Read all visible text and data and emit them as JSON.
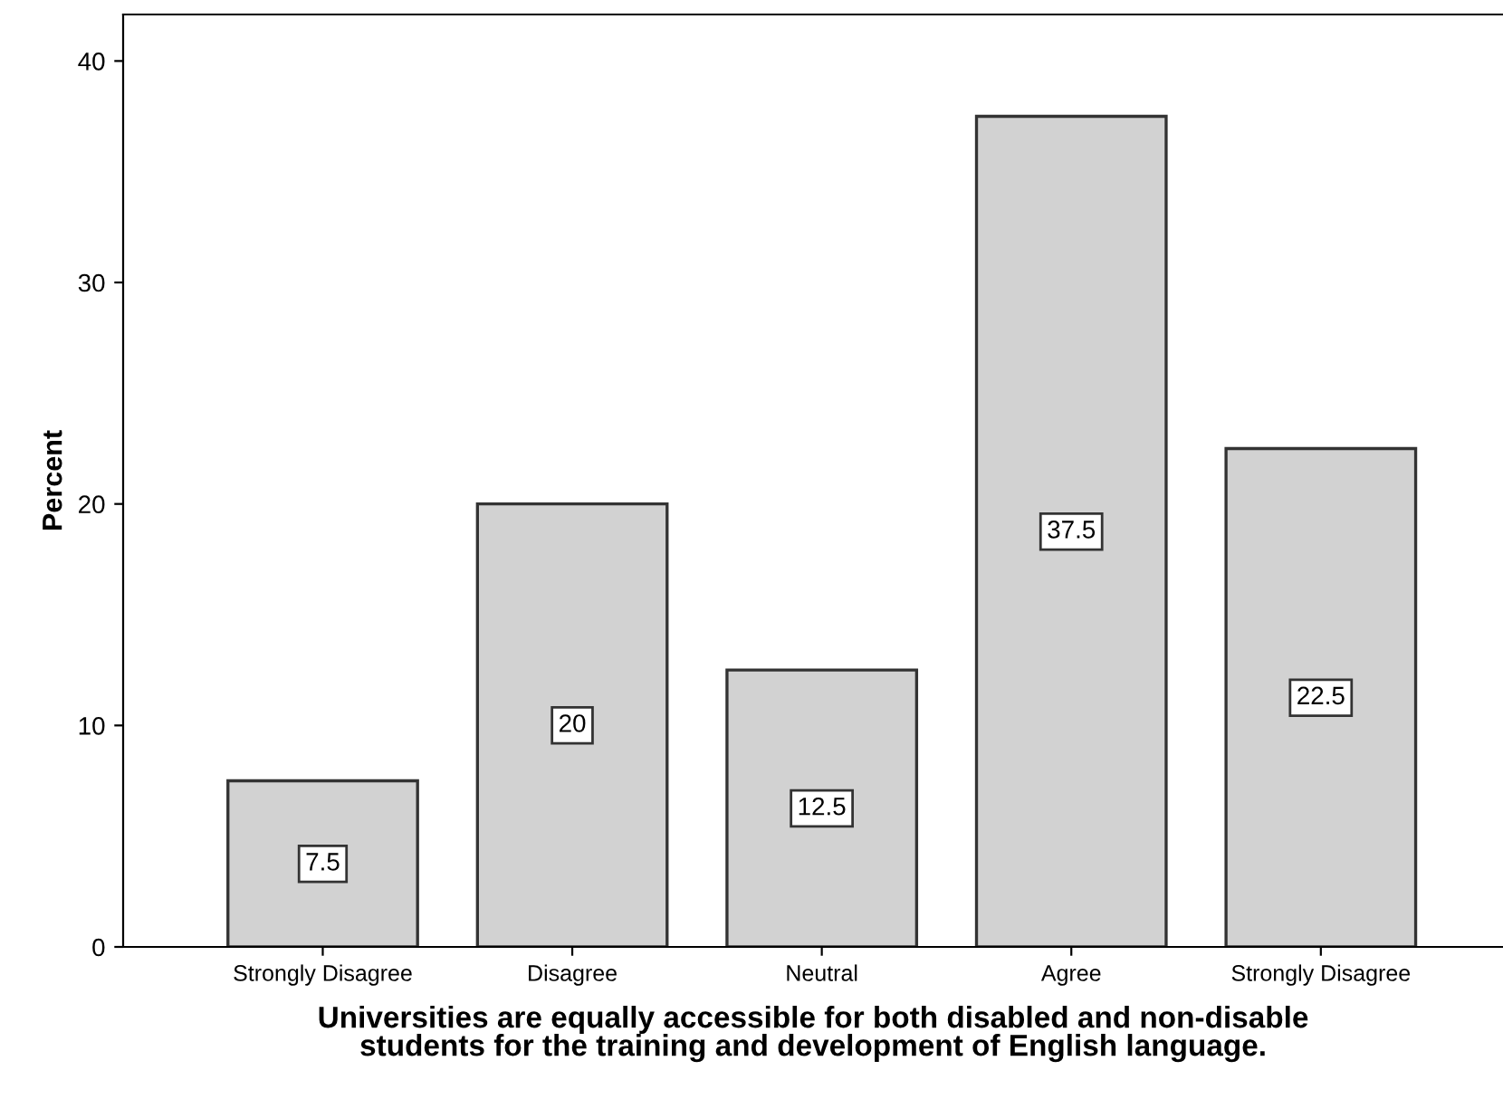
{
  "chart_data": {
    "type": "bar",
    "xlabel": "Universities are equally accessible for both disabled and non-disable\nstudents for the training and development of English language.",
    "ylabel": "Percent",
    "categories": [
      "Strongly Disagree",
      "Disagree",
      "Neutral",
      "Agree",
      "Strongly Disagree"
    ],
    "values": [
      7.5,
      20,
      12.5,
      37.5,
      22.5
    ],
    "color": "#d2d2d2",
    "ylim": [
      0,
      42.1
    ],
    "yticks": [
      0,
      10,
      20,
      30,
      40
    ],
    "grid": false,
    "data_labels": true
  }
}
